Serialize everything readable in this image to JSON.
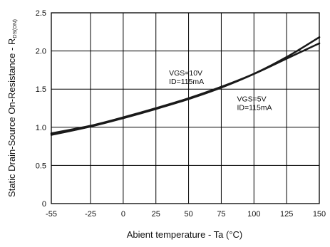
{
  "chart_data": {
    "type": "line",
    "title": "",
    "xlabel": "Abient temperature - Ta (°C)",
    "ylabel": {
      "main": "Static Drain-Source On-Resistance - R",
      "subscript": "DS(ON)"
    },
    "xlim": [
      -55,
      150
    ],
    "ylim": [
      0,
      2.5
    ],
    "x_ticks": [
      -55,
      -25,
      0,
      25,
      50,
      75,
      100,
      125,
      150
    ],
    "y_ticks": [
      0,
      0.5,
      1.0,
      1.5,
      2.0,
      2.5
    ],
    "x_tick_labels": [
      "-55",
      "-25",
      "0",
      "25",
      "50",
      "75",
      "100",
      "125",
      "150"
    ],
    "y_tick_labels": [
      "0",
      "0.5",
      "1.0",
      "1.5",
      "2.0",
      "2.5"
    ],
    "grid": true,
    "series": [
      {
        "name": "VGS=10V ID=115mA",
        "color": "#1a1a1a",
        "x": [
          -55,
          -25,
          0,
          25,
          50,
          75,
          100,
          125,
          150
        ],
        "y": [
          0.92,
          1.02,
          1.13,
          1.25,
          1.38,
          1.53,
          1.7,
          1.9,
          2.1
        ]
      },
      {
        "name": "VGS=5V ID=115mA",
        "color": "#1a1a1a",
        "x": [
          -55,
          -25,
          0,
          25,
          50,
          75,
          100,
          125,
          150
        ],
        "y": [
          0.9,
          1.01,
          1.12,
          1.24,
          1.37,
          1.52,
          1.7,
          1.92,
          2.18
        ]
      }
    ],
    "annotations": [
      {
        "lines": [
          "VGS=10V",
          "ID=115mA"
        ],
        "x": 35,
        "y": 1.68
      },
      {
        "lines": [
          "VGS=5V",
          "ID=115mA"
        ],
        "x": 87,
        "y": 1.34
      }
    ]
  }
}
